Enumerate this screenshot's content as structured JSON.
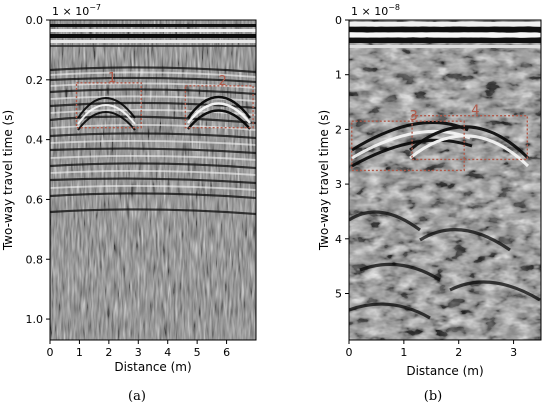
{
  "chart_data": [
    {
      "type": "heatmap",
      "panel_label": "(a)",
      "xlabel": "Distance (m)",
      "ylabel": "Two-way travel time (s)",
      "y_scale_label": "1 × 10",
      "y_scale_exp": "−7",
      "xlim": [
        0,
        7
      ],
      "ylim": [
        1.07,
        0
      ],
      "x_ticks": [
        {
          "value": 0,
          "label": "0"
        },
        {
          "value": 1,
          "label": "1"
        },
        {
          "value": 2,
          "label": "2"
        },
        {
          "value": 3,
          "label": "3"
        },
        {
          "value": 4,
          "label": "4"
        },
        {
          "value": 5,
          "label": "5"
        },
        {
          "value": 6,
          "label": "6"
        }
      ],
      "y_ticks": [
        {
          "value": 0,
          "label": "0.0"
        },
        {
          "value": 0.2,
          "label": "0.2"
        },
        {
          "value": 0.4,
          "label": "0.4"
        },
        {
          "value": 0.6,
          "label": "0.6"
        },
        {
          "value": 0.8,
          "label": "0.8"
        },
        {
          "value": 1.0,
          "label": "1.0"
        }
      ],
      "regions": [
        {
          "label": "1",
          "x0": 0.9,
          "x1": 3.1,
          "y0": 0.21,
          "y1": 0.36
        },
        {
          "label": "2",
          "x0": 4.6,
          "x1": 6.9,
          "y0": 0.22,
          "y1": 0.36
        }
      ],
      "grid": false,
      "colors": {
        "roi": "#b05a4a"
      }
    },
    {
      "type": "heatmap",
      "panel_label": "(b)",
      "xlabel": "Distance (m)",
      "ylabel": "Two-way travel time (s)",
      "y_scale_label": "1 × 10",
      "y_scale_exp": "−8",
      "xlim": [
        0,
        3.5
      ],
      "ylim": [
        5.85,
        0
      ],
      "x_ticks": [
        {
          "value": 0,
          "label": "0"
        },
        {
          "value": 1,
          "label": "1"
        },
        {
          "value": 2,
          "label": "2"
        },
        {
          "value": 3,
          "label": "3"
        }
      ],
      "y_ticks": [
        {
          "value": 0,
          "label": "0"
        },
        {
          "value": 1,
          "label": "1"
        },
        {
          "value": 2,
          "label": "2"
        },
        {
          "value": 3,
          "label": "3"
        },
        {
          "value": 4,
          "label": "4"
        },
        {
          "value": 5,
          "label": "5"
        }
      ],
      "regions": [
        {
          "label": "3",
          "x0": 0.05,
          "x1": 2.1,
          "y0": 1.85,
          "y1": 2.75
        },
        {
          "label": "4",
          "x0": 1.15,
          "x1": 3.25,
          "y0": 1.75,
          "y1": 2.55
        }
      ],
      "grid": false,
      "colors": {
        "roi": "#b05a4a"
      }
    }
  ]
}
